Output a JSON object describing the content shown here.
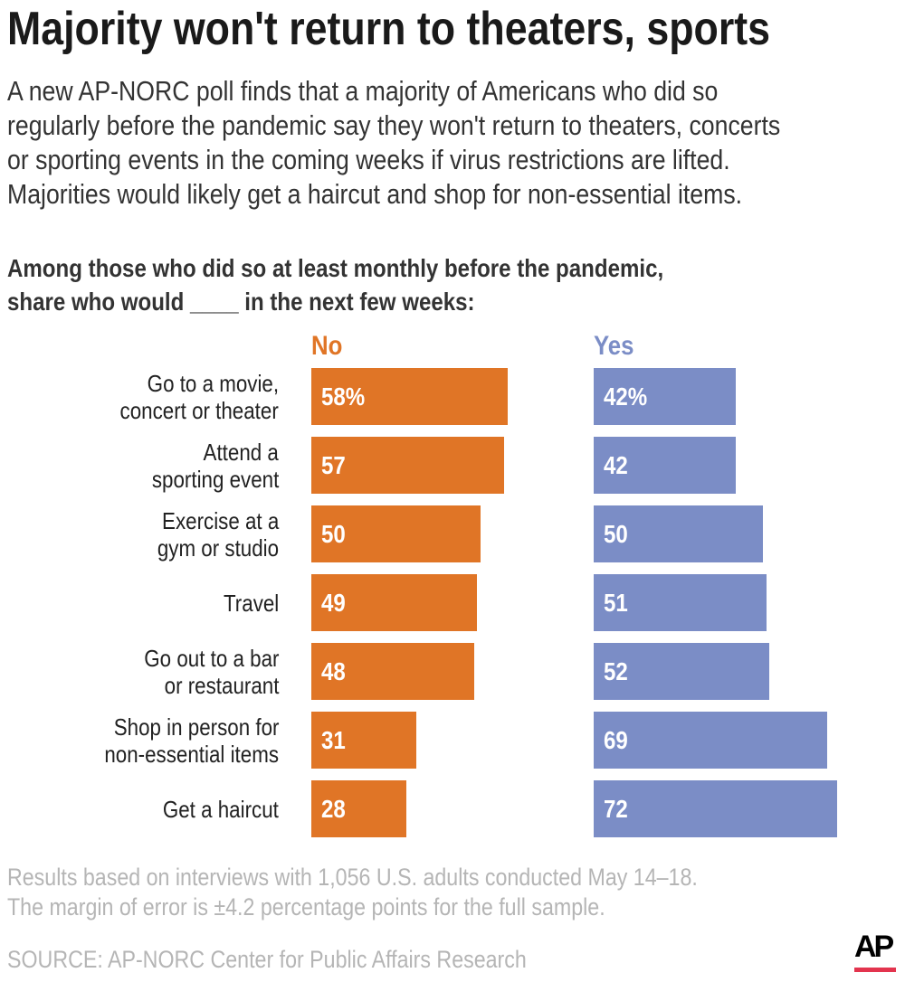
{
  "title": "Majority won't return to theaters, sports",
  "intro": [
    "A new AP-NORC poll finds that a majority of Americans who did so",
    "regularly before the pandemic say they won't return to theaters, concerts",
    "or sporting events in the coming weeks if virus restrictions are lifted.",
    "Majorities would likely get a haircut and shop for non-essential items."
  ],
  "subtitle": [
    "Among those who did so at least monthly before the pandemic,",
    "share who would ____ in the next few weeks:"
  ],
  "chart_data": {
    "type": "bar",
    "orientation": "horizontal",
    "unit": "%",
    "categories": [
      [
        "Go to a movie,",
        "concert or theater"
      ],
      [
        "Attend a",
        "sporting event"
      ],
      [
        "Exercise at a",
        "gym or studio"
      ],
      [
        "Travel"
      ],
      [
        "Go out to a bar",
        "or restaurant"
      ],
      [
        "Shop in person for",
        "non-essential items"
      ],
      [
        "Get a haircut"
      ]
    ],
    "series": [
      {
        "name": "No",
        "color": "#E07526",
        "values": [
          58,
          57,
          50,
          49,
          48,
          31,
          28
        ],
        "labels": [
          "58%",
          "57",
          "50",
          "49",
          "48",
          "31",
          "28"
        ]
      },
      {
        "name": "Yes",
        "color": "#7B8DC6",
        "values": [
          42,
          42,
          50,
          51,
          52,
          69,
          72
        ],
        "labels": [
          "42%",
          "42",
          "50",
          "51",
          "52",
          "69",
          "72"
        ]
      }
    ]
  },
  "footnote": [
    "Results based on interviews with 1,056 U.S. adults conducted May 14–18.",
    "The margin of error is ±4.2 percentage points for the full sample."
  ],
  "source": "SOURCE: AP-NORC Center for Public Affairs Research",
  "logo": {
    "text": "AP",
    "accent": "#E3344E"
  }
}
